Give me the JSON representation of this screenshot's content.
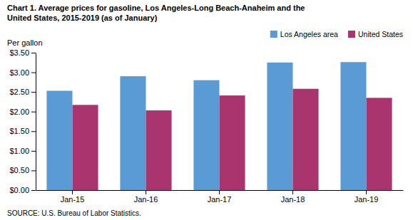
{
  "chart_data": {
    "type": "bar",
    "title": "Chart 1. Average prices for gasoline, Los Angeles-Long Beach-Anaheim and the\nUnited States, 2015-2019  (as of January)",
    "ylabel": "Per gallon",
    "annotations": [
      "SOURCE: U.S. Bureau of Labor Statistics."
    ],
    "categories": [
      "Jan-15",
      "Jan-16",
      "Jan-17",
      "Jan-18",
      "Jan-19"
    ],
    "series": [
      {
        "name": "Los Angeles area",
        "color": "#5B9BD5",
        "values": [
          2.53,
          2.9,
          2.8,
          3.25,
          3.26
        ]
      },
      {
        "name": "United States",
        "color": "#A9346E",
        "values": [
          2.17,
          2.03,
          2.41,
          2.58,
          2.35
        ]
      }
    ],
    "ylim": [
      0,
      3.5
    ],
    "yticks": [
      {
        "value": 0.0,
        "label": "$0.00"
      },
      {
        "value": 0.5,
        "label": "$0.50"
      },
      {
        "value": 1.0,
        "label": "$1.00"
      },
      {
        "value": 1.5,
        "label": "$1.50"
      },
      {
        "value": 2.0,
        "label": "$2.00"
      },
      {
        "value": 2.5,
        "label": "$2.50"
      },
      {
        "value": 3.0,
        "label": "$3.00"
      },
      {
        "value": 3.5,
        "label": "$3.50"
      }
    ],
    "legend": "upper right",
    "grid": false
  }
}
